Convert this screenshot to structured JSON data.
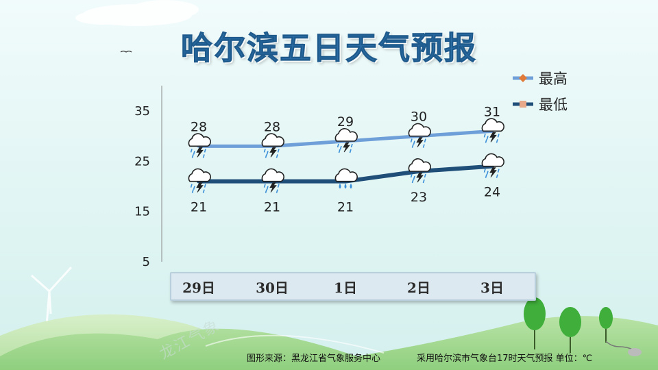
{
  "title": "哈尔滨五日天气预报",
  "chart_data": {
    "type": "line",
    "categories": [
      "29日",
      "30日",
      "1日",
      "2日",
      "3日"
    ],
    "series": [
      {
        "name": "最高",
        "values": [
          28,
          28,
          29,
          30,
          31
        ],
        "color": "#6f9fd8",
        "marker_color": "#e07b39",
        "marker": "diamond",
        "weather": [
          "thunderstorm",
          "thunderstorm",
          "thunderstorm",
          "thunderstorm",
          "thunderstorm"
        ]
      },
      {
        "name": "最低",
        "values": [
          21,
          21,
          21,
          23,
          24
        ],
        "color": "#1f4e79",
        "marker_color": "#e8a98a",
        "marker": "square",
        "weather": [
          "thunderstorm",
          "thunderstorm",
          "rain",
          "thunderstorm",
          "thunderstorm"
        ]
      }
    ],
    "yticks": [
      5,
      15,
      25,
      35
    ],
    "ylim": [
      5,
      35
    ],
    "legend": "top-right",
    "grid": false,
    "ylabel": "",
    "xlabel": ""
  },
  "footer": {
    "source": "图形来源：黑龙江省气象服务中心",
    "note": "采用哈尔滨市气象台17时天气预报 单位：℃"
  },
  "watermark": "龙江气象"
}
